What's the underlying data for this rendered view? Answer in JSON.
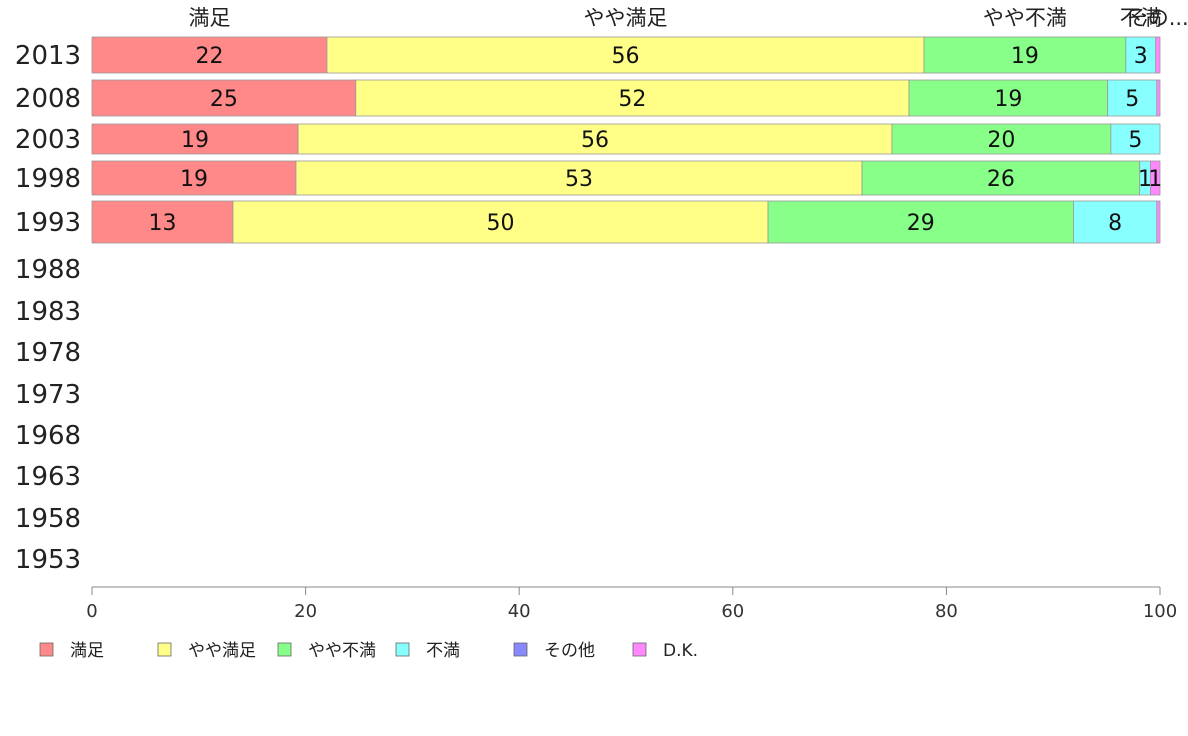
{
  "chart_data": {
    "type": "bar",
    "orientation": "horizontal",
    "stacked": true,
    "categories": [
      "2013",
      "2008",
      "2003",
      "1998",
      "1993",
      "1988",
      "1983",
      "1978",
      "1973",
      "1968",
      "1963",
      "1958",
      "1953"
    ],
    "series": [
      {
        "name": "満足",
        "color": "#ff8888",
        "values": [
          22,
          24.7,
          19.3,
          19.1,
          13.2,
          null,
          null,
          null,
          null,
          null,
          null,
          null,
          null
        ],
        "labels": [
          "22",
          "25",
          "19",
          "19",
          "13",
          "",
          "",
          "",
          "",
          "",
          "",
          "",
          ""
        ]
      },
      {
        "name": "やや満足",
        "color": "#ffff88",
        "values": [
          55.9,
          51.8,
          55.6,
          53.0,
          50.1,
          null,
          null,
          null,
          null,
          null,
          null,
          null,
          null
        ],
        "labels": [
          "56",
          "52",
          "56",
          "53",
          "50",
          "",
          "",
          "",
          "",
          "",
          "",
          "",
          ""
        ]
      },
      {
        "name": "やや不満",
        "color": "#88ff88",
        "values": [
          18.9,
          18.6,
          20.5,
          26.0,
          28.6,
          null,
          null,
          null,
          null,
          null,
          null,
          null,
          null
        ],
        "labels": [
          "19",
          "19",
          "20",
          "26",
          "29",
          "",
          "",
          "",
          "",
          "",
          "",
          "",
          ""
        ]
      },
      {
        "name": "不満",
        "color": "#88ffff",
        "values": [
          2.8,
          4.6,
          4.6,
          1.0,
          7.8,
          null,
          null,
          null,
          null,
          null,
          null,
          null,
          null
        ],
        "labels": [
          "3",
          "5",
          "5",
          "1",
          "8",
          "",
          "",
          "",
          "",
          "",
          "",
          "",
          ""
        ]
      },
      {
        "name": "その他",
        "color": "#8888ff",
        "values": [
          0,
          0,
          0,
          0,
          0,
          null,
          null,
          null,
          null,
          null,
          null,
          null,
          null
        ],
        "labels": [
          "",
          "",
          "",
          "",
          "",
          "",
          "",
          "",
          "",
          "",
          "",
          "",
          ""
        ]
      },
      {
        "name": "D.K.",
        "color": "#ff88ff",
        "values": [
          0.4,
          0.3,
          0,
          0.9,
          0.3,
          null,
          null,
          null,
          null,
          null,
          null,
          null,
          null
        ],
        "labels": [
          "",
          "",
          "",
          "1",
          "",
          "",
          "",
          "",
          "",
          "",
          "",
          "",
          ""
        ]
      }
    ],
    "column_labels": [
      "満足",
      "やや満足",
      "やや不満",
      "不満",
      "その..."
    ],
    "xlim": [
      0,
      100
    ],
    "xticks": [
      0,
      20,
      40,
      60,
      80,
      100
    ],
    "grid": false,
    "legend_position": "bottom"
  }
}
